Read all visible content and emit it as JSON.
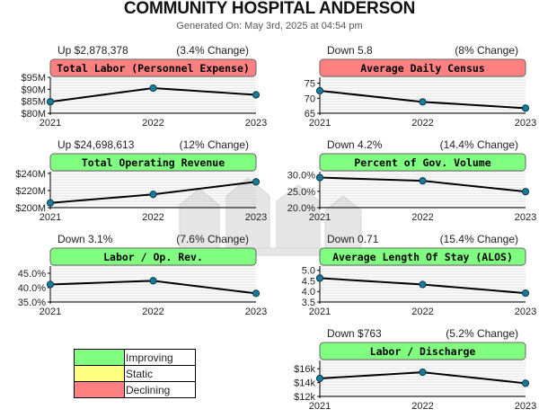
{
  "title": "COMMUNITY HOSPITAL ANDERSON",
  "subtitle": "Generated On: May 3rd, 2025 at 04:54 pm",
  "colors": {
    "improving": "#80ff80",
    "static": "#ffff80",
    "declining": "#ff8080",
    "line": "#000000",
    "marker": "#1a7a9a",
    "grid": "#bbbbbb"
  },
  "legend": [
    {
      "label": "Improving",
      "color": "#80ff80"
    },
    {
      "label": "Static",
      "color": "#ffff80"
    },
    {
      "label": "Declining",
      "color": "#ff8080"
    }
  ],
  "chart_data": [
    {
      "type": "line",
      "title": "Total Labor (Personnel Expense)",
      "status": "declining",
      "change_left": "Up $2,878,378",
      "change_right": "(3.4% Change)",
      "x": [
        "2021",
        "2022",
        "2023"
      ],
      "values": [
        84.8,
        90.5,
        87.7
      ],
      "y_ticks": [
        "$95M",
        "$90M",
        "$85M",
        "$80M"
      ],
      "y_tick_values": [
        95,
        90,
        85,
        80
      ],
      "ylim": [
        80,
        95
      ]
    },
    {
      "type": "line",
      "title": "Average Daily Census",
      "status": "declining",
      "change_left": "Down 5.8",
      "change_right": "(8% Change)",
      "x": [
        "2021",
        "2022",
        "2023"
      ],
      "values": [
        72.5,
        68.8,
        66.7
      ],
      "y_ticks": [
        "75",
        "70",
        "65"
      ],
      "y_tick_values": [
        75,
        70,
        65
      ],
      "ylim": [
        65,
        77
      ]
    },
    {
      "type": "line",
      "title": "Total Operating Revenue",
      "status": "improving",
      "change_left": "Up $24,698,613",
      "change_right": "(12% Change)",
      "x": [
        "2021",
        "2022",
        "2023"
      ],
      "values": [
        205.5,
        215.5,
        230.2
      ],
      "y_ticks": [
        "$240M",
        "$220M",
        "$200M"
      ],
      "y_tick_values": [
        240,
        220,
        200
      ],
      "ylim": [
        200,
        242
      ]
    },
    {
      "type": "line",
      "title": "Percent of Gov. Volume",
      "status": "improving",
      "change_left": "Down 4.2%",
      "change_right": "(14.4% Change)",
      "x": [
        "2021",
        "2022",
        "2023"
      ],
      "values": [
        29.2,
        28.2,
        24.9
      ],
      "y_ticks": [
        "30.0%",
        "25.0%",
        "20.0%"
      ],
      "y_tick_values": [
        30,
        25,
        20
      ],
      "ylim": [
        20,
        31
      ]
    },
    {
      "type": "line",
      "title": "Labor / Op. Rev.",
      "status": "improving",
      "change_left": "Down 3.1%",
      "change_right": "(7.6% Change)",
      "x": [
        "2021",
        "2022",
        "2023"
      ],
      "values": [
        41.1,
        42.4,
        38.0
      ],
      "y_ticks": [
        "45.0%",
        "40.0%",
        "35.0%"
      ],
      "y_tick_values": [
        45,
        40,
        35
      ],
      "ylim": [
        35,
        47.5
      ]
    },
    {
      "type": "line",
      "title": "Average Length Of Stay (ALOS)",
      "status": "improving",
      "change_left": "Down 0.71",
      "change_right": "(15.4% Change)",
      "x": [
        "2021",
        "2022",
        "2023"
      ],
      "values": [
        4.63,
        4.33,
        3.92
      ],
      "y_ticks": [
        "5.0",
        "4.5",
        "4.0",
        "3.5"
      ],
      "y_tick_values": [
        5.0,
        4.5,
        4.0,
        3.5
      ],
      "ylim": [
        3.5,
        5.2
      ]
    },
    {
      "type": "line",
      "title": "Labor / Discharge",
      "status": "improving",
      "change_left": "Down $763",
      "change_right": "(5.2% Change)",
      "x": [
        "2021",
        "2022",
        "2023"
      ],
      "values": [
        14.6,
        15.5,
        13.9
      ],
      "y_ticks": [
        "$16k",
        "$14k",
        "$12k"
      ],
      "y_tick_values": [
        16,
        14,
        12
      ],
      "ylim": [
        12,
        17.2
      ]
    }
  ]
}
